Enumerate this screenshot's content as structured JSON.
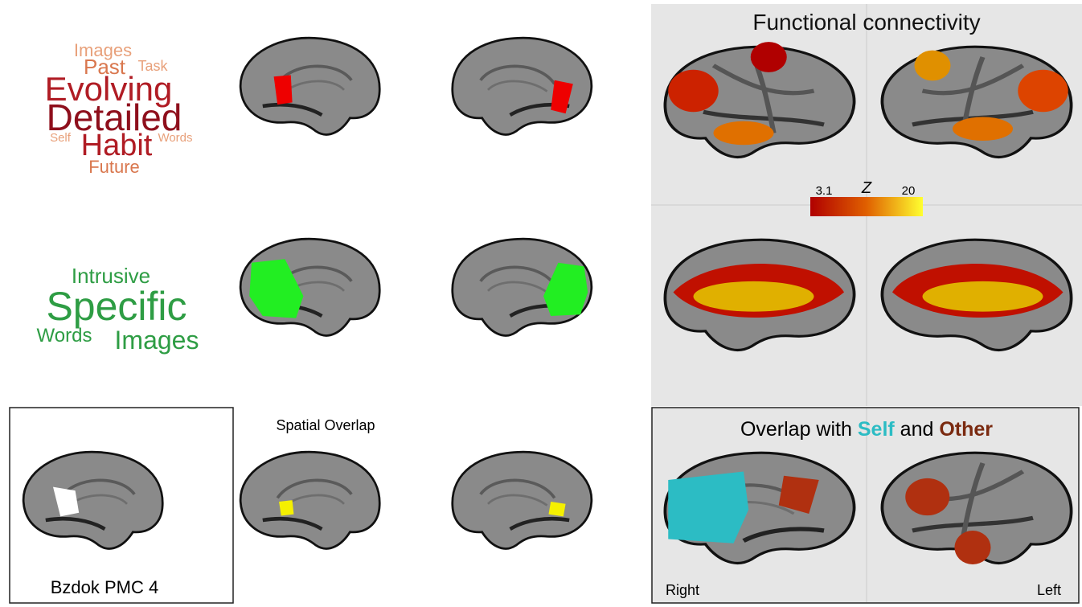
{
  "word_cloud_top": [
    "Images",
    "Past",
    "Task",
    "Evolving",
    "Detailed",
    "Self",
    "Habit",
    "Words",
    "Future"
  ],
  "word_cloud_bottom": [
    "Intrusive",
    "Specific",
    "Words",
    "Images"
  ],
  "connectivity": {
    "title": "Functional connectivity",
    "colorbar": {
      "min_label": "3.1",
      "variable": "Z",
      "max_label": "20"
    }
  },
  "spatial_overlap": {
    "title": "Spatial Overlap"
  },
  "reference": {
    "label": "Bzdok PMC 4"
  },
  "overlap_panel": {
    "title_prefix": "Overlap with",
    "self": "Self",
    "joiner": "and",
    "other": "Other",
    "right_label": "Right",
    "left_label": "Left"
  }
}
